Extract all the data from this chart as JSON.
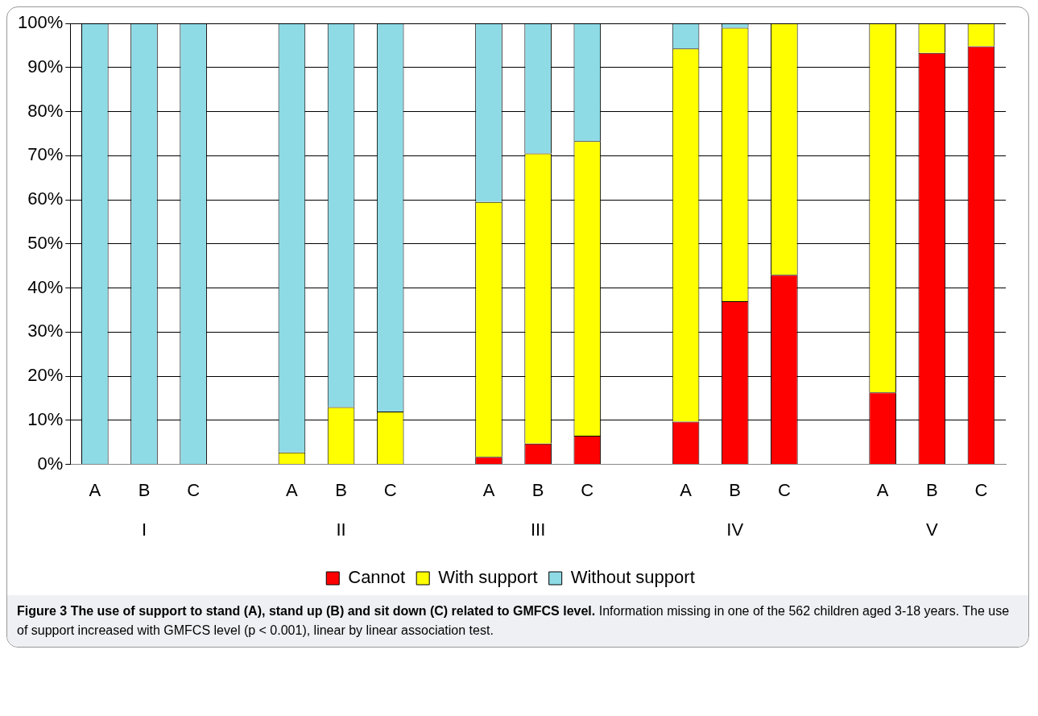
{
  "chart_data": {
    "type": "bar",
    "stacked": true,
    "title": "Figure 3 The use of support to stand (A), stand up (B) and sit down (C) related to GMFCS level.",
    "subtitle": "Information missing in one of the 562 children aged 3-18 years. The use of support increased with GMFCS level (p < 0.001), linear by linear association test.",
    "categories": [
      "A",
      "B",
      "C",
      null,
      "A",
      "B",
      "C",
      null,
      "A",
      "B",
      "C",
      null,
      "A",
      "B",
      "C",
      null,
      "A",
      "B",
      "C"
    ],
    "series": [
      {
        "name": "Cannot",
        "color": "#ff0000",
        "values": [
          0,
          0,
          0,
          null,
          0,
          0,
          0,
          null,
          1.7,
          4.7,
          6.5,
          null,
          9.7,
          37,
          43,
          null,
          16.3,
          93.3,
          94.8
        ]
      },
      {
        "name": "With support",
        "color": "#ffff00",
        "values": [
          0,
          0,
          0,
          null,
          2.7,
          13,
          12,
          null,
          57.8,
          65.8,
          66.8,
          null,
          84.6,
          62,
          57,
          null,
          83.7,
          6.7,
          5.2
        ]
      },
      {
        "name": "Without support",
        "color": "#8edbe6",
        "values": [
          100,
          100,
          100,
          null,
          97.3,
          87,
          88,
          null,
          40.5,
          29.5,
          26.7,
          null,
          5.7,
          1,
          0,
          null,
          0,
          0,
          0
        ]
      }
    ],
    "ylim": [
      0,
      100
    ],
    "yticks": [
      {
        "value": 0,
        "label": "0%"
      },
      {
        "value": 10,
        "label": "10%"
      },
      {
        "value": 20,
        "label": "20%"
      },
      {
        "value": 30,
        "label": "30%"
      },
      {
        "value": 40,
        "label": "40%"
      },
      {
        "value": 50,
        "label": "50%"
      },
      {
        "value": 60,
        "label": "60%"
      },
      {
        "value": 70,
        "label": "70%"
      },
      {
        "value": 80,
        "label": "80%"
      },
      {
        "value": 90,
        "label": "90%"
      },
      {
        "value": 100,
        "label": "100%"
      }
    ],
    "grid": "y",
    "legend": "bottom",
    "annotations": [
      "I",
      "II",
      "III",
      "IV",
      "V"
    ]
  }
}
